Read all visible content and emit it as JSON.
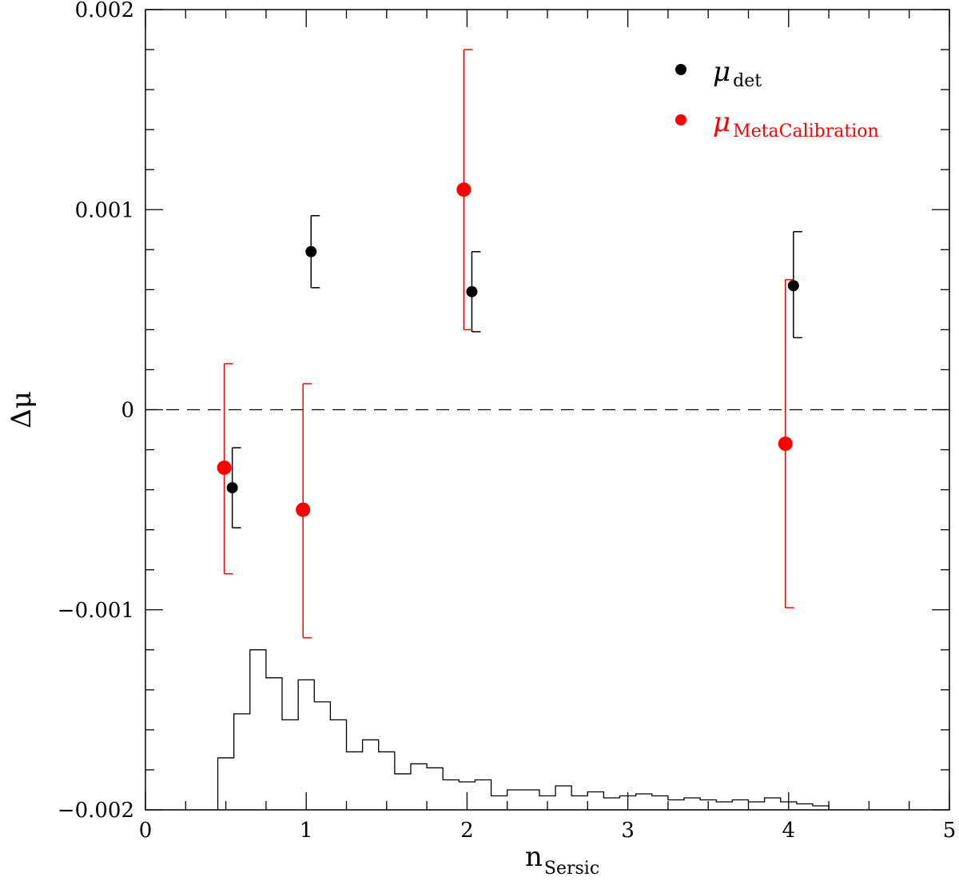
{
  "chart_data": {
    "type": "scatter",
    "title": "",
    "xlabel": {
      "main": "n",
      "sub": "Sersic"
    },
    "ylabel": "Δμ",
    "xlim": [
      0,
      5
    ],
    "ylim": [
      -0.002,
      0.002
    ],
    "x_ticks": [
      0,
      1,
      2,
      3,
      4,
      5
    ],
    "x_tick_labels": [
      "0",
      "1",
      "2",
      "3",
      "4",
      "5"
    ],
    "y_ticks": [
      -0.002,
      -0.001,
      0,
      0.001,
      0.002
    ],
    "y_tick_labels": [
      "−0.002",
      "−0.001",
      "0",
      "0.001",
      "0.002"
    ],
    "reference_line": {
      "y": 0,
      "style": "dashed"
    },
    "legend_position": "top-right",
    "series": [
      {
        "name": "μ",
        "subscript": "det",
        "color": "#000000",
        "points": [
          {
            "x": 0.54,
            "y": -0.00039,
            "ylow": -0.00059,
            "yhigh": -0.00019
          },
          {
            "x": 1.03,
            "y": 0.00079,
            "ylow": 0.00061,
            "yhigh": 0.00097
          },
          {
            "x": 2.03,
            "y": 0.00059,
            "ylow": 0.00039,
            "yhigh": 0.00079
          },
          {
            "x": 4.03,
            "y": 0.00062,
            "ylow": 0.00036,
            "yhigh": 0.00089
          }
        ]
      },
      {
        "name": "μ",
        "subscript": "MetaCalibration",
        "color": "#ff0000",
        "points": [
          {
            "x": 0.49,
            "y": -0.00029,
            "ylow": -0.00082,
            "yhigh": 0.00023
          },
          {
            "x": 0.98,
            "y": -0.0005,
            "ylow": -0.00114,
            "yhigh": 0.00013
          },
          {
            "x": 1.98,
            "y": 0.0011,
            "ylow": 0.0004,
            "yhigh": 0.0018
          },
          {
            "x": 3.98,
            "y": -0.00017,
            "ylow": -0.00099,
            "yhigh": 0.00065
          }
        ]
      }
    ],
    "histogram": {
      "color": "#000000",
      "bin_edges": [
        0.45,
        0.55,
        0.65,
        0.75,
        0.85,
        0.95,
        1.05,
        1.15,
        1.25,
        1.35,
        1.45,
        1.55,
        1.65,
        1.75,
        1.85,
        1.95,
        2.05,
        2.15,
        2.25,
        2.35,
        2.45,
        2.55,
        2.65,
        2.75,
        2.85,
        2.95,
        3.05,
        3.15,
        3.25,
        3.35,
        3.45,
        3.55,
        3.65,
        3.75,
        3.85,
        3.95,
        4.05,
        4.15,
        4.25
      ],
      "values": [
        -0.00174,
        -0.00152,
        -0.0012,
        -0.00134,
        -0.00155,
        -0.00135,
        -0.00146,
        -0.00155,
        -0.00171,
        -0.00165,
        -0.00171,
        -0.00182,
        -0.00177,
        -0.00179,
        -0.00185,
        -0.00186,
        -0.00185,
        -0.00193,
        -0.0019,
        -0.0019,
        -0.00193,
        -0.00188,
        -0.00193,
        -0.00191,
        -0.00194,
        -0.00193,
        -0.00192,
        -0.00193,
        -0.00195,
        -0.00194,
        -0.00195,
        -0.00196,
        -0.00195,
        -0.00196,
        -0.00194,
        -0.00196,
        -0.00197,
        -0.00198
      ]
    }
  }
}
